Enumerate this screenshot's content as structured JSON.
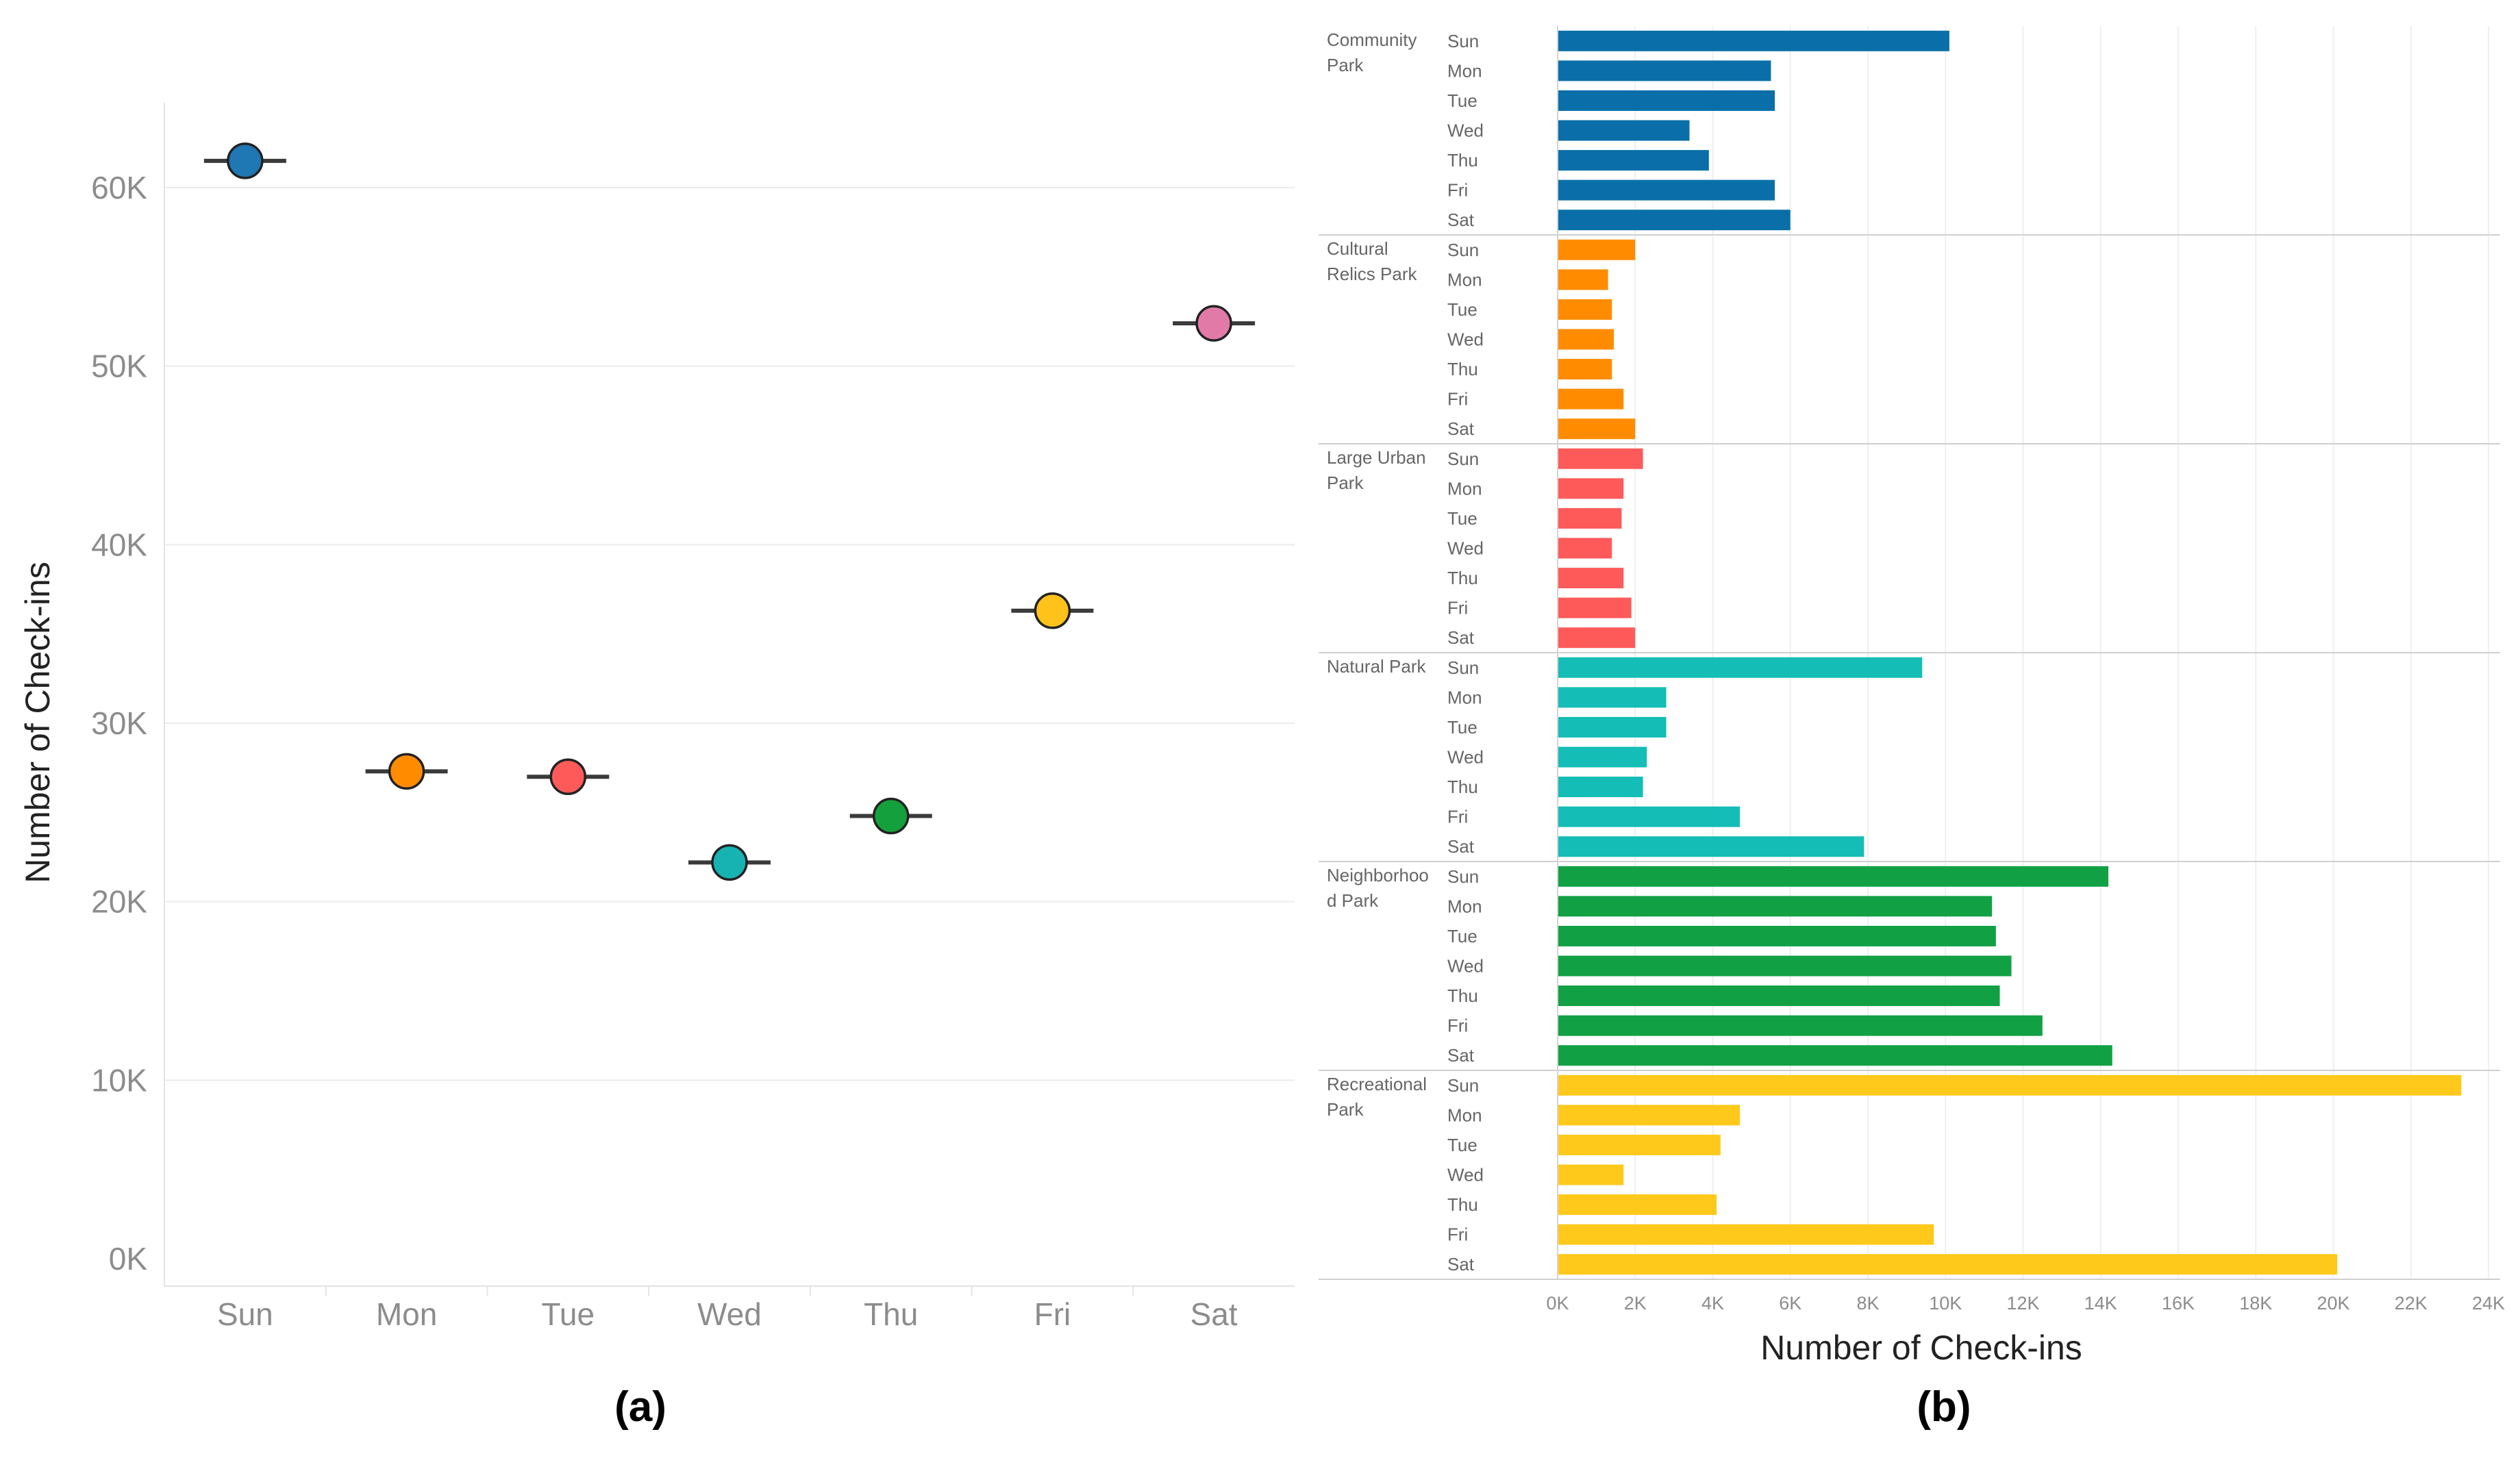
{
  "chart_data": [
    {
      "type": "scatter",
      "panel_label": "(a)",
      "ylabel": "Number of Check-ins",
      "xlabel": "",
      "categories": [
        "Sun",
        "Mon",
        "Tue",
        "Wed",
        "Thu",
        "Fri",
        "Sat"
      ],
      "values": [
        61500,
        27300,
        27000,
        22200,
        24800,
        36300,
        52400
      ],
      "colors": [
        "#1f77b4",
        "#ff8c00",
        "#ff5a5a",
        "#17b3b3",
        "#14a03c",
        "#ffc21a",
        "#e27aa8"
      ],
      "ylim": [
        0,
        65000
      ],
      "yticks": [
        0,
        10000,
        20000,
        30000,
        40000,
        50000,
        60000
      ],
      "ytick_labels": [
        "0K",
        "10K",
        "20K",
        "30K",
        "40K",
        "50K",
        "60K"
      ],
      "grid": true
    },
    {
      "type": "bar",
      "orientation": "horizontal",
      "panel_label": "(b)",
      "xlabel": "Number of Check-ins",
      "ylabel": "",
      "xlim": [
        0,
        24000
      ],
      "xticks": [
        0,
        2000,
        4000,
        6000,
        8000,
        10000,
        12000,
        14000,
        16000,
        18000,
        20000,
        22000,
        24000
      ],
      "xtick_labels": [
        "0K",
        "2K",
        "4K",
        "6K",
        "8K",
        "10K",
        "12K",
        "14K",
        "16K",
        "18K",
        "20K",
        "22K",
        "24K"
      ],
      "grid": true,
      "days": [
        "Sun",
        "Mon",
        "Tue",
        "Wed",
        "Thu",
        "Fri",
        "Sat"
      ],
      "groups": [
        {
          "name_lines": [
            "Community",
            "Park"
          ],
          "color": "#0a6fa8",
          "values": [
            10100,
            5500,
            5600,
            3400,
            3900,
            5600,
            6000
          ]
        },
        {
          "name_lines": [
            "Cultural",
            "Relics Park"
          ],
          "color": "#ff8c00",
          "values": [
            2000,
            1300,
            1400,
            1450,
            1400,
            1700,
            2000
          ]
        },
        {
          "name_lines": [
            "Large Urban",
            "Park"
          ],
          "color": "#ff5a5a",
          "values": [
            2200,
            1700,
            1650,
            1400,
            1700,
            1900,
            2000
          ]
        },
        {
          "name_lines": [
            "Natural Park"
          ],
          "color": "#14bdb6",
          "values": [
            9400,
            2800,
            2800,
            2300,
            2200,
            4700,
            7900
          ]
        },
        {
          "name_lines": [
            "Neighborhoo",
            "d Park"
          ],
          "color": "#12a045",
          "values": [
            14200,
            11200,
            11300,
            11700,
            11400,
            12500,
            14300
          ]
        },
        {
          "name_lines": [
            "Recreational",
            "Park"
          ],
          "color": "#ffc91c",
          "values": [
            23300,
            4700,
            4200,
            1700,
            4100,
            9700,
            20100
          ]
        }
      ]
    }
  ]
}
